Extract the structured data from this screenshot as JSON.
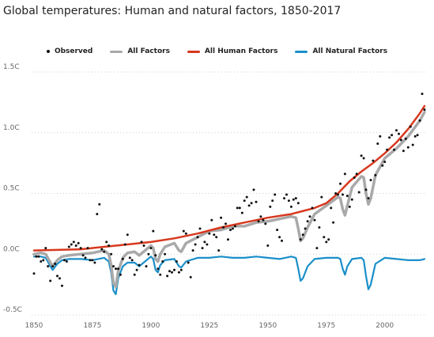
{
  "title": "Global temperatures: Human and natural factors, 1850-2017",
  "chart_data": {
    "type": "line",
    "title": "Global temperatures: Human and natural factors, 1850-2017",
    "xlabel": "",
    "ylabel": "",
    "xlim": [
      1849,
      2017
    ],
    "ylim": [
      -0.5,
      1.5
    ],
    "x_ticks": [
      1850,
      1875,
      1900,
      1925,
      1950,
      1975,
      2000
    ],
    "x_tick_labels": [
      "1850",
      "1875",
      "1900",
      "1925",
      "1950",
      "1975",
      "2000"
    ],
    "y_ticks": [
      -0.5,
      0.0,
      0.5,
      1.0,
      1.5
    ],
    "y_tick_labels": [
      "-0.5C",
      "0.0C",
      "0.5C",
      "1.0C",
      "1.5C"
    ],
    "grid": "horizontal dotted",
    "legend_position": "top-center",
    "legend": [
      {
        "name": "Observed",
        "style": "dot",
        "color": "#111111"
      },
      {
        "name": "All Factors",
        "style": "line",
        "color": "#a9a9a9"
      },
      {
        "name": "All Human Factors",
        "style": "line",
        "color": "#d7381e"
      },
      {
        "name": "All Natural Factors",
        "style": "line",
        "color": "#1a8fc9"
      }
    ],
    "series": [
      {
        "name": "All Human Factors",
        "type": "line",
        "color": "#d7381e",
        "x": [
          1850,
          1860,
          1870,
          1880,
          1890,
          1900,
          1910,
          1920,
          1930,
          1940,
          1950,
          1960,
          1970,
          1975,
          1980,
          1985,
          1990,
          1995,
          2000,
          2005,
          2010,
          2015,
          2017
        ],
        "y": [
          0.03,
          0.035,
          0.04,
          0.06,
          0.08,
          0.1,
          0.13,
          0.17,
          0.22,
          0.26,
          0.3,
          0.33,
          0.38,
          0.42,
          0.5,
          0.6,
          0.68,
          0.75,
          0.83,
          0.92,
          1.03,
          1.16,
          1.22
        ]
      },
      {
        "name": "All Natural Factors",
        "type": "line",
        "color": "#1a8fc9",
        "x": [
          1850,
          1853,
          1855,
          1857,
          1858,
          1860,
          1862,
          1865,
          1870,
          1875,
          1880,
          1882,
          1883,
          1884,
          1885,
          1886,
          1888,
          1890,
          1893,
          1895,
          1900,
          1901,
          1902,
          1903,
          1904,
          1906,
          1910,
          1912,
          1913,
          1915,
          1920,
          1925,
          1930,
          1935,
          1940,
          1945,
          1950,
          1955,
          1960,
          1962,
          1963,
          1964,
          1965,
          1967,
          1970,
          1975,
          1980,
          1981,
          1982,
          1983,
          1984,
          1986,
          1990,
          1991,
          1992,
          1993,
          1994,
          1996,
          2000,
          2005,
          2010,
          2015,
          2017
        ],
        "y": [
          -0.02,
          -0.02,
          -0.03,
          -0.1,
          -0.13,
          -0.08,
          -0.05,
          -0.04,
          -0.04,
          -0.05,
          -0.03,
          -0.06,
          -0.15,
          -0.3,
          -0.33,
          -0.2,
          -0.1,
          -0.07,
          -0.07,
          -0.1,
          -0.02,
          -0.04,
          -0.13,
          -0.15,
          -0.09,
          -0.05,
          -0.04,
          -0.1,
          -0.11,
          -0.06,
          -0.03,
          -0.03,
          -0.02,
          -0.03,
          -0.03,
          -0.02,
          -0.03,
          -0.04,
          -0.02,
          -0.03,
          -0.12,
          -0.22,
          -0.2,
          -0.1,
          -0.04,
          -0.03,
          -0.03,
          -0.04,
          -0.12,
          -0.17,
          -0.1,
          -0.04,
          -0.03,
          -0.05,
          -0.18,
          -0.29,
          -0.25,
          -0.08,
          -0.03,
          -0.04,
          -0.05,
          -0.05,
          -0.04
        ]
      },
      {
        "name": "All Factors",
        "type": "line",
        "color": "#a9a9a9",
        "x": [
          1850,
          1853,
          1855,
          1857,
          1858,
          1860,
          1862,
          1865,
          1870,
          1875,
          1880,
          1882,
          1883,
          1884,
          1885,
          1886,
          1888,
          1890,
          1893,
          1895,
          1900,
          1901,
          1902,
          1903,
          1904,
          1906,
          1910,
          1912,
          1913,
          1915,
          1920,
          1925,
          1930,
          1935,
          1940,
          1945,
          1950,
          1955,
          1960,
          1962,
          1963,
          1964,
          1965,
          1967,
          1970,
          1975,
          1980,
          1981,
          1982,
          1983,
          1984,
          1986,
          1990,
          1991,
          1992,
          1993,
          1994,
          1996,
          2000,
          2005,
          2010,
          2015,
          2017
        ],
        "y": [
          0.0,
          0.01,
          0.0,
          -0.07,
          -0.1,
          -0.05,
          -0.02,
          -0.01,
          0.0,
          0.01,
          0.03,
          0.0,
          -0.09,
          -0.24,
          -0.27,
          -0.14,
          -0.03,
          0.01,
          0.02,
          -0.01,
          0.07,
          0.05,
          -0.04,
          -0.06,
          0.0,
          0.06,
          0.09,
          0.03,
          0.02,
          0.09,
          0.14,
          0.19,
          0.2,
          0.23,
          0.23,
          0.26,
          0.27,
          0.29,
          0.31,
          0.3,
          0.21,
          0.11,
          0.13,
          0.22,
          0.33,
          0.4,
          0.47,
          0.46,
          0.37,
          0.32,
          0.4,
          0.55,
          0.64,
          0.63,
          0.5,
          0.41,
          0.46,
          0.65,
          0.79,
          0.87,
          0.97,
          1.1,
          1.17
        ]
      },
      {
        "name": "Observed",
        "type": "scatter",
        "color": "#111111",
        "x": [
          1850,
          1851,
          1852,
          1853,
          1854,
          1855,
          1856,
          1857,
          1858,
          1859,
          1860,
          1861,
          1862,
          1863,
          1864,
          1865,
          1866,
          1867,
          1868,
          1869,
          1870,
          1871,
          1872,
          1873,
          1874,
          1875,
          1876,
          1877,
          1878,
          1879,
          1880,
          1881,
          1882,
          1883,
          1884,
          1885,
          1886,
          1887,
          1888,
          1889,
          1890,
          1891,
          1892,
          1893,
          1894,
          1895,
          1896,
          1897,
          1898,
          1899,
          1900,
          1901,
          1902,
          1903,
          1904,
          1905,
          1906,
          1907,
          1908,
          1909,
          1910,
          1911,
          1912,
          1913,
          1914,
          1915,
          1916,
          1917,
          1918,
          1919,
          1920,
          1921,
          1922,
          1923,
          1924,
          1925,
          1926,
          1927,
          1928,
          1929,
          1930,
          1931,
          1932,
          1933,
          1934,
          1935,
          1936,
          1937,
          1938,
          1939,
          1940,
          1941,
          1942,
          1943,
          1944,
          1945,
          1946,
          1947,
          1948,
          1949,
          1950,
          1951,
          1952,
          1953,
          1954,
          1955,
          1956,
          1957,
          1958,
          1959,
          1960,
          1961,
          1962,
          1963,
          1964,
          1965,
          1966,
          1967,
          1968,
          1969,
          1970,
          1971,
          1972,
          1973,
          1974,
          1975,
          1976,
          1977,
          1978,
          1979,
          1980,
          1981,
          1982,
          1983,
          1984,
          1985,
          1986,
          1987,
          1988,
          1989,
          1990,
          1991,
          1992,
          1993,
          1994,
          1995,
          1996,
          1997,
          1998,
          1999,
          2000,
          2001,
          2002,
          2003,
          2004,
          2005,
          2006,
          2007,
          2008,
          2009,
          2010,
          2011,
          2012,
          2013,
          2014,
          2015,
          2016,
          2017
        ],
        "y": [
          -0.16,
          -0.02,
          -0.02,
          -0.06,
          -0.05,
          0.05,
          -0.1,
          -0.22,
          -0.1,
          -0.08,
          -0.18,
          -0.2,
          -0.26,
          -0.05,
          -0.06,
          0.06,
          0.08,
          0.1,
          0.07,
          0.09,
          0.05,
          -0.01,
          -0.03,
          0.05,
          -0.05,
          -0.05,
          -0.07,
          0.33,
          0.41,
          0.04,
          0.02,
          0.1,
          0.07,
          0.0,
          -0.1,
          -0.12,
          -0.12,
          -0.17,
          -0.04,
          0.08,
          0.16,
          -0.03,
          -0.05,
          -0.17,
          -0.13,
          -0.09,
          0.1,
          0.07,
          -0.1,
          0.0,
          0.05,
          0.19,
          -0.01,
          -0.12,
          -0.17,
          -0.06,
          0.0,
          -0.18,
          -0.14,
          -0.15,
          -0.13,
          -0.06,
          -0.15,
          -0.13,
          0.19,
          0.17,
          -0.07,
          -0.19,
          0.03,
          0.08,
          0.14,
          0.21,
          0.05,
          0.1,
          0.08,
          0.17,
          0.28,
          0.16,
          0.14,
          0.03,
          0.3,
          0.22,
          0.25,
          0.12,
          0.2,
          0.21,
          0.23,
          0.38,
          0.38,
          0.34,
          0.44,
          0.47,
          0.4,
          0.42,
          0.53,
          0.43,
          0.27,
          0.31,
          0.28,
          0.25,
          0.07,
          0.39,
          0.44,
          0.49,
          0.2,
          0.14,
          0.11,
          0.46,
          0.49,
          0.44,
          0.39,
          0.45,
          0.46,
          0.42,
          0.12,
          0.16,
          0.21,
          0.27,
          0.31,
          0.38,
          0.28,
          0.05,
          0.22,
          0.47,
          0.14,
          0.1,
          0.12,
          0.38,
          0.26,
          0.5,
          0.49,
          0.58,
          0.49,
          0.66,
          0.48,
          0.39,
          0.45,
          0.63,
          0.66,
          0.51,
          0.81,
          0.79,
          0.53,
          0.46,
          0.61,
          0.77,
          0.65,
          0.91,
          0.97,
          0.73,
          0.76,
          0.86,
          0.96,
          0.98,
          0.86,
          1.02,
          0.99,
          0.94,
          0.85,
          0.95,
          0.88,
          1.05,
          0.9,
          0.97,
          0.98,
          1.1,
          1.32,
          1.19
        ]
      }
    ]
  }
}
